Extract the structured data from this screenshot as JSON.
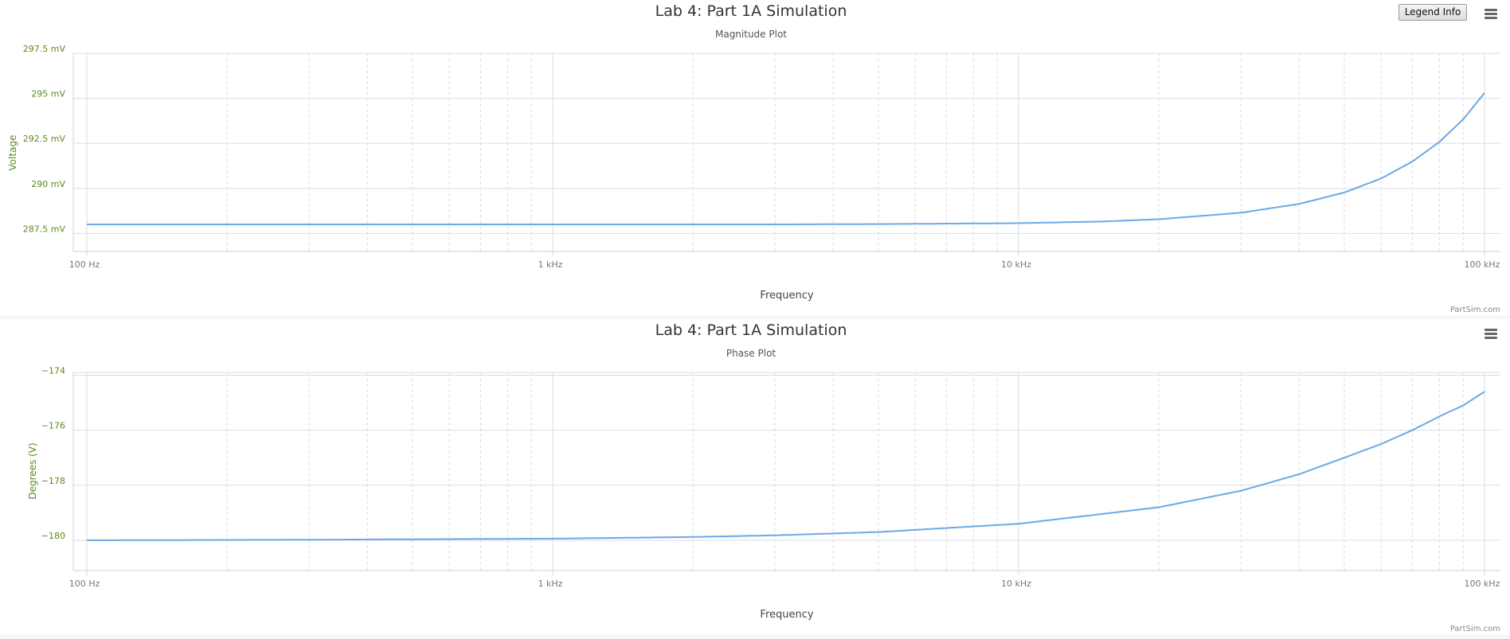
{
  "legend_button_label": "Legend Info",
  "menu_icon": "hamburger-menu-icon",
  "credit": "PartSim.com",
  "colors": {
    "series": "#6aa9e6",
    "axis_text": "#5c8a1e",
    "grid": "#d8dde6"
  },
  "chart_data": [
    {
      "type": "line",
      "title": "Lab 4: Part 1A Simulation",
      "subtitle": "Magnitude Plot",
      "xlabel": "Frequency",
      "ylabel": "Voltage",
      "x_scale": "log",
      "xlim": [
        100,
        100000
      ],
      "ylim": [
        286.5,
        297.5
      ],
      "x_ticks": [
        100,
        1000,
        10000,
        100000
      ],
      "x_tick_labels": [
        "100 Hz",
        "1 kHz",
        "10 kHz",
        "100 kHz"
      ],
      "y_ticks": [
        297.5,
        295,
        292.5,
        290,
        287.5
      ],
      "y_tick_labels": [
        "297.5 mV",
        "295 mV",
        "292.5 mV",
        "290 mV",
        "287.5 mV"
      ],
      "grid": true,
      "series": [
        {
          "x": [
            100,
            1000,
            3000,
            5000,
            10000,
            15000,
            20000,
            30000,
            40000,
            50000,
            60000,
            70000,
            80000,
            90000,
            100000
          ],
          "y": [
            288.0,
            288.0,
            288.0,
            288.02,
            288.07,
            288.16,
            288.29,
            288.65,
            289.14,
            289.77,
            290.55,
            291.49,
            292.58,
            293.84,
            295.3
          ]
        }
      ]
    },
    {
      "type": "line",
      "title": "Lab 4: Part 1A Simulation",
      "subtitle": "Phase Plot",
      "xlabel": "Frequency",
      "ylabel": "Degrees (V)",
      "x_scale": "log",
      "xlim": [
        100,
        100000
      ],
      "ylim": [
        -181.1,
        -173.9
      ],
      "x_ticks": [
        100,
        1000,
        10000,
        100000
      ],
      "x_tick_labels": [
        "100 Hz",
        "1 kHz",
        "10 kHz",
        "100 kHz"
      ],
      "y_ticks": [
        -174,
        -176,
        -178,
        -180
      ],
      "y_tick_labels": [
        "−174",
        "−176",
        "−178",
        "−180"
      ],
      "grid": true,
      "series": [
        {
          "x": [
            100,
            300,
            1000,
            2000,
            3000,
            5000,
            10000,
            20000,
            30000,
            40000,
            50000,
            60000,
            70000,
            80000,
            90000,
            100000
          ],
          "y": [
            -180.0,
            -179.98,
            -179.94,
            -179.88,
            -179.82,
            -179.7,
            -179.4,
            -178.8,
            -178.2,
            -177.6,
            -177.0,
            -176.5,
            -176.0,
            -175.5,
            -175.1,
            -174.6
          ]
        }
      ]
    }
  ]
}
